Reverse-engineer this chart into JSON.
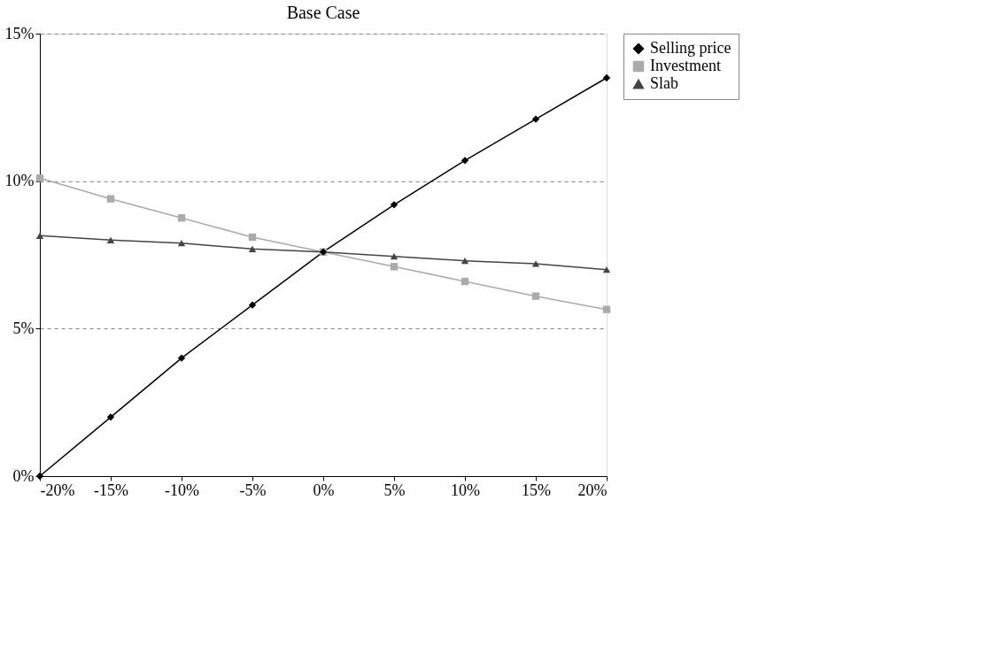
{
  "chart_data": {
    "type": "line",
    "title": "Base Case",
    "x": [
      -20,
      -15,
      -10,
      -5,
      0,
      5,
      10,
      15,
      20
    ],
    "series": [
      {
        "name": "Selling price",
        "color": "#000000",
        "marker": "diamond",
        "values": [
          0.0,
          2.0,
          4.0,
          5.8,
          7.6,
          9.2,
          10.7,
          12.1,
          13.5
        ]
      },
      {
        "name": "Investment",
        "color": "#aaaaaa",
        "marker": "square",
        "values": [
          10.1,
          9.4,
          8.75,
          8.1,
          7.6,
          7.1,
          6.6,
          6.1,
          5.65
        ]
      },
      {
        "name": "Slab",
        "color": "#444444",
        "marker": "triangle",
        "values": [
          8.15,
          8.0,
          7.9,
          7.7,
          7.6,
          7.45,
          7.3,
          7.2,
          7.0
        ]
      }
    ],
    "xlim": [
      -20,
      20
    ],
    "xticks": [
      {
        "value": -20,
        "label": "-20%"
      },
      {
        "value": -15,
        "label": "-15%"
      },
      {
        "value": -10,
        "label": "-10%"
      },
      {
        "value": -5,
        "label": "-5%"
      },
      {
        "value": 0,
        "label": "0%"
      },
      {
        "value": 5,
        "label": "5%"
      },
      {
        "value": 10,
        "label": "10%"
      },
      {
        "value": 15,
        "label": "15%"
      },
      {
        "value": 20,
        "label": "20%"
      }
    ],
    "ylim": [
      0,
      15
    ],
    "yticks": [
      {
        "value": 0,
        "label": "0%"
      },
      {
        "value": 5,
        "label": "5%"
      },
      {
        "value": 10,
        "label": "10%"
      },
      {
        "value": 15,
        "label": "15%"
      }
    ],
    "grid": "y",
    "legend": "right",
    "line_style": "solid"
  }
}
